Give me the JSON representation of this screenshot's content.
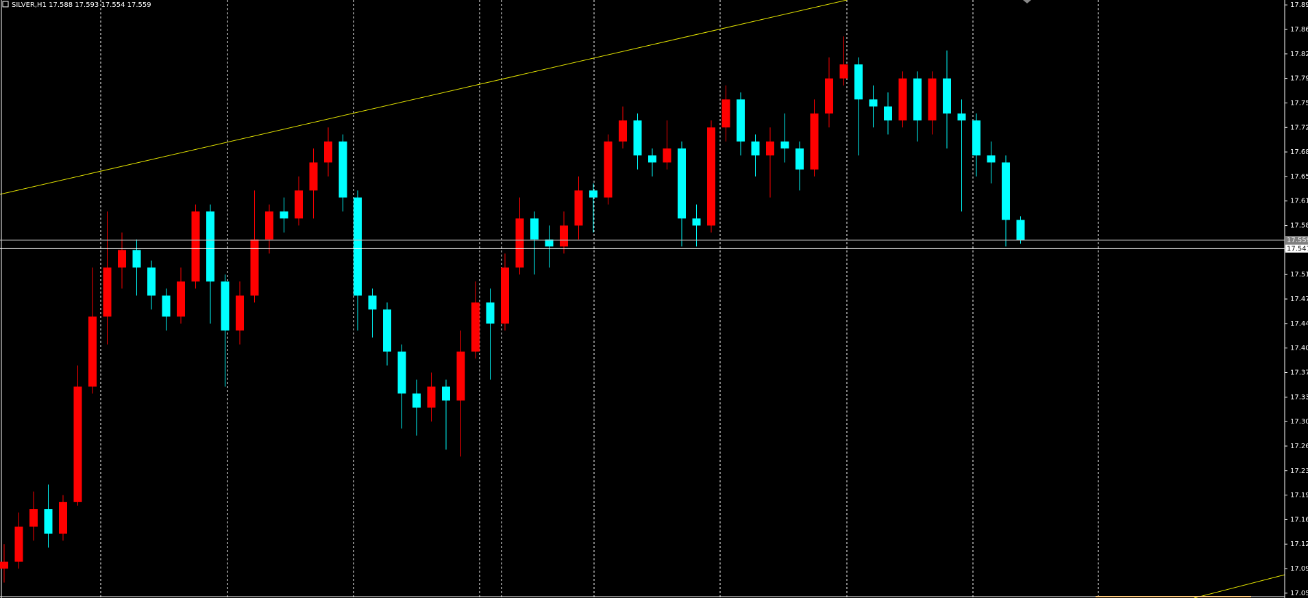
{
  "chart_data": {
    "type": "candlestick",
    "title": "SILVER,H1 17.588 17.593 17.554 17.559",
    "up_color": "#ff0000",
    "down_color": "#00ffff",
    "grid": false,
    "ylim": [
      17.05,
      17.902
    ],
    "yticks": [
      17.055,
      {
        "value": 17.09,
        "label": "17.090"
      },
      17.125,
      {
        "value": 17.16,
        "label": "17.160"
      },
      17.195,
      {
        "value": 17.23,
        "label": "17.230"
      },
      17.265,
      {
        "value": 17.3,
        "label": "17.300"
      },
      17.335,
      {
        "value": 17.37,
        "label": "17.370"
      },
      17.405,
      {
        "value": 17.44,
        "label": "17.440"
      },
      17.475,
      {
        "value": 17.51,
        "label": "17.510"
      },
      17.545,
      {
        "value": 17.58,
        "label": "17.580"
      },
      17.615,
      {
        "value": 17.65,
        "label": "17.650"
      },
      17.685,
      {
        "value": 17.72,
        "label": "17.720"
      },
      17.755,
      {
        "value": 17.79,
        "label": "17.790"
      },
      17.825,
      {
        "value": 17.86,
        "label": "17.860"
      },
      17.895
    ],
    "price_lines": [
      {
        "value": 17.559,
        "color": "#c0c0c0"
      },
      {
        "value": 17.547,
        "color": "#ffffff"
      }
    ],
    "open": [
      17.09,
      17.1,
      17.15,
      17.175,
      17.14,
      17.185,
      17.35,
      17.45,
      17.52,
      17.545,
      17.52,
      17.48,
      17.45,
      17.5,
      17.6,
      17.5,
      17.43,
      17.48,
      17.56,
      17.6,
      17.59,
      17.63,
      17.67,
      17.7,
      17.62,
      17.48,
      17.46,
      17.4,
      17.34,
      17.32,
      17.35,
      17.33,
      17.4,
      17.47,
      17.44,
      17.52,
      17.59,
      17.56,
      17.55,
      17.58,
      17.63,
      17.62,
      17.7,
      17.73,
      17.68,
      17.67,
      17.69,
      17.59,
      17.58,
      17.72,
      17.76,
      17.7,
      17.68,
      17.7,
      17.69,
      17.66,
      17.74,
      17.79,
      17.81,
      17.76,
      17.75,
      17.73,
      17.79,
      17.73,
      17.79,
      17.74,
      17.73,
      17.68,
      17.67,
      17.588
    ],
    "high": [
      17.125,
      17.17,
      17.2,
      17.21,
      17.195,
      17.38,
      17.52,
      17.6,
      17.57,
      17.56,
      17.53,
      17.49,
      17.52,
      17.61,
      17.61,
      17.51,
      17.5,
      17.63,
      17.61,
      17.62,
      17.65,
      17.69,
      17.72,
      17.71,
      17.63,
      17.49,
      17.47,
      17.41,
      17.36,
      17.37,
      17.36,
      17.43,
      17.5,
      17.49,
      17.54,
      17.62,
      17.6,
      17.58,
      17.6,
      17.65,
      17.64,
      17.71,
      17.75,
      17.74,
      17.69,
      17.73,
      17.7,
      17.61,
      17.73,
      17.78,
      17.77,
      17.71,
      17.72,
      17.74,
      17.7,
      17.76,
      17.82,
      17.85,
      17.82,
      17.78,
      17.77,
      17.8,
      17.8,
      17.8,
      17.83,
      17.76,
      17.74,
      17.7,
      17.68,
      17.593
    ],
    "low": [
      17.07,
      17.09,
      17.13,
      17.12,
      17.13,
      17.18,
      17.34,
      17.41,
      17.49,
      17.48,
      17.46,
      17.43,
      17.44,
      17.49,
      17.44,
      17.35,
      17.41,
      17.47,
      17.54,
      17.57,
      17.58,
      17.59,
      17.65,
      17.6,
      17.43,
      17.42,
      17.38,
      17.29,
      17.28,
      17.3,
      17.26,
      17.25,
      17.39,
      17.36,
      17.43,
      17.51,
      17.51,
      17.52,
      17.54,
      17.56,
      17.57,
      17.61,
      17.69,
      17.66,
      17.65,
      17.66,
      17.55,
      17.55,
      17.57,
      17.7,
      17.68,
      17.65,
      17.62,
      17.67,
      17.63,
      17.65,
      17.72,
      17.78,
      17.68,
      17.72,
      17.71,
      17.72,
      17.7,
      17.71,
      17.69,
      17.6,
      17.65,
      17.64,
      17.55,
      17.554
    ],
    "close": [
      17.1,
      17.15,
      17.175,
      17.14,
      17.185,
      17.35,
      17.45,
      17.52,
      17.545,
      17.52,
      17.48,
      17.45,
      17.5,
      17.6,
      17.5,
      17.43,
      17.48,
      17.56,
      17.6,
      17.59,
      17.63,
      17.67,
      17.7,
      17.62,
      17.48,
      17.46,
      17.4,
      17.34,
      17.32,
      17.35,
      17.33,
      17.4,
      17.47,
      17.44,
      17.52,
      17.59,
      17.56,
      17.55,
      17.58,
      17.63,
      17.62,
      17.7,
      17.73,
      17.68,
      17.67,
      17.69,
      17.59,
      17.58,
      17.72,
      17.76,
      17.7,
      17.68,
      17.7,
      17.69,
      17.66,
      17.74,
      17.79,
      17.81,
      17.76,
      17.75,
      17.73,
      17.79,
      17.73,
      17.79,
      17.74,
      17.73,
      17.68,
      17.67,
      17.588,
      17.559
    ]
  }
}
